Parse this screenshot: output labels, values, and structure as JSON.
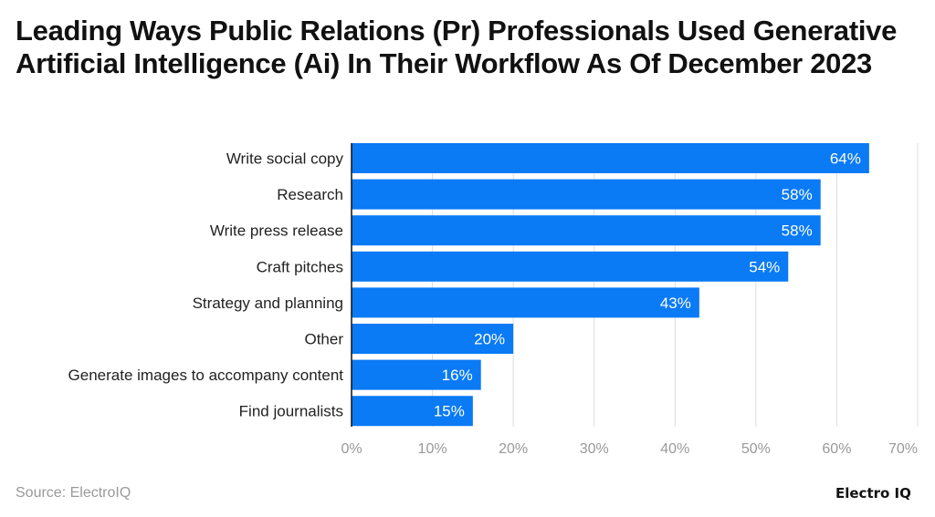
{
  "chart_data": {
    "type": "bar",
    "orientation": "horizontal",
    "title": "Leading Ways Public Relations (Pr) Professionals Used Generative Artificial Intelligence (Ai) In Their Workflow As Of December 2023",
    "categories": [
      "Write social copy",
      "Research",
      "Write press release",
      "Craft pitches",
      "Strategy and planning",
      "Other",
      "Generate images to accompany content",
      "Find journalists"
    ],
    "values": [
      64,
      58,
      58,
      54,
      43,
      20,
      16,
      15
    ],
    "data_labels": [
      "64%",
      "58%",
      "58%",
      "54%",
      "43%",
      "20%",
      "16%",
      "15%"
    ],
    "xlim": [
      0,
      70
    ],
    "x_ticks": [
      "0%",
      "10%",
      "20%",
      "30%",
      "40%",
      "50%",
      "60%",
      "70%"
    ],
    "grid": true,
    "bar_color": "#0A7AF5"
  },
  "footer": {
    "source": "Source: ElectroIQ",
    "logo": "Electro IQ"
  }
}
